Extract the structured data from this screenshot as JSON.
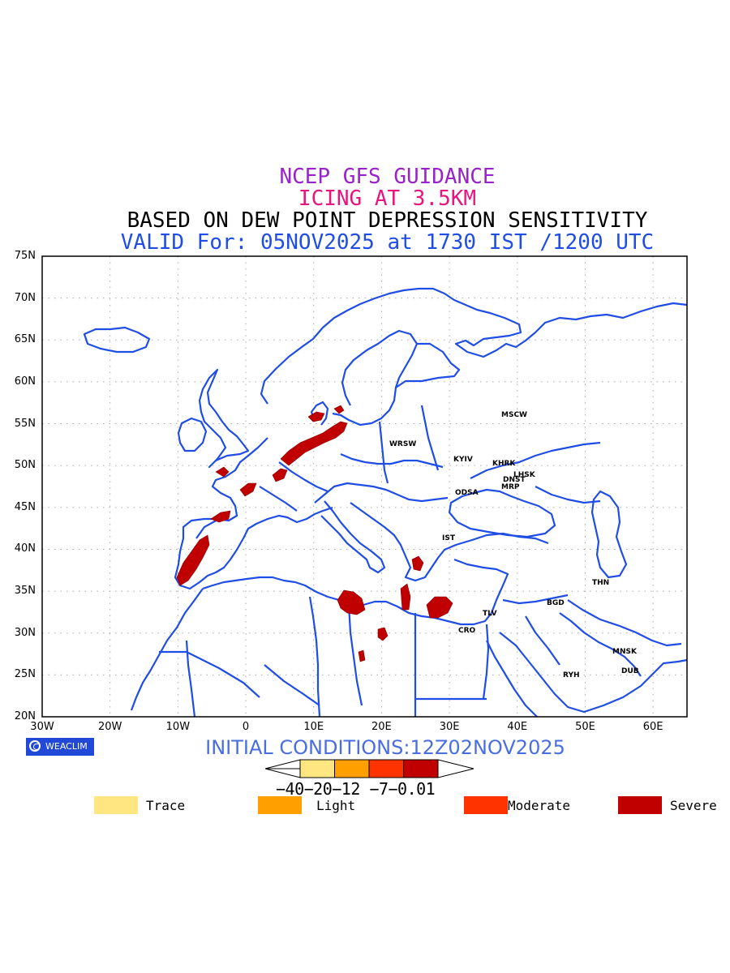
{
  "header": {
    "line1": "NCEP GFS GUIDANCE",
    "line2": "ICING AT 3.5KM",
    "line3": "BASED ON DEW POINT DEPRESSION SENSITIVITY",
    "line4": "VALID For: 05NOV2025 at 1730 IST /1200 UTC"
  },
  "axes": {
    "lat_labels": [
      "75N",
      "70N",
      "65N",
      "60N",
      "55N",
      "50N",
      "45N",
      "40N",
      "35N",
      "30N",
      "25N",
      "20N"
    ],
    "lon_labels": [
      "30W",
      "20W",
      "10W",
      "0",
      "10E",
      "20E",
      "30E",
      "40E",
      "50E",
      "60E"
    ]
  },
  "cities": [
    {
      "name": "MSCW"
    },
    {
      "name": "WRSW"
    },
    {
      "name": "KYIV"
    },
    {
      "name": "KHRK"
    },
    {
      "name": "LHSK"
    },
    {
      "name": "DNST"
    },
    {
      "name": "MRP"
    },
    {
      "name": "ODSA"
    },
    {
      "name": "IST"
    },
    {
      "name": "THN"
    },
    {
      "name": "BGD"
    },
    {
      "name": "TLV"
    },
    {
      "name": "CRO"
    },
    {
      "name": "MNSK"
    },
    {
      "name": "DUB"
    },
    {
      "name": "RYH"
    }
  ],
  "brand": "WEACLIM",
  "initial_conditions": "INITIAL CONDITIONS:12Z02NOV2025",
  "colorbar": {
    "labels": "−40−20−12 −7−0.01",
    "colors": [
      "#ffe680",
      "#ffa000",
      "#ff3300",
      "#c00000"
    ]
  },
  "legend": {
    "items": [
      {
        "label": "Trace",
        "color": "#ffe680"
      },
      {
        "label": "Light",
        "color": "#ffa000"
      },
      {
        "label": "Moderate",
        "color": "#ff3300"
      },
      {
        "label": "Severe",
        "color": "#c00000"
      }
    ]
  },
  "colors": {
    "coast": "#1f4de6",
    "grid": "#aaaaaa",
    "icing": "#c00000"
  }
}
